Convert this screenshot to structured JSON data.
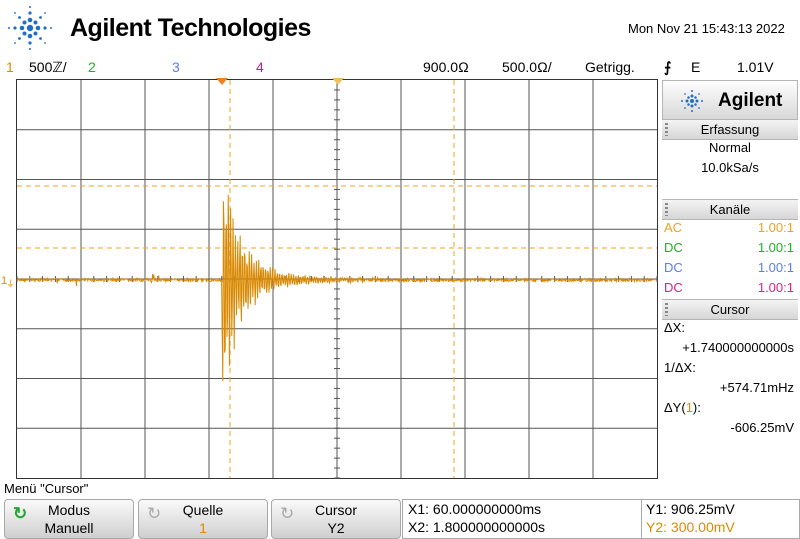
{
  "header": {
    "brand": "Agilent Technologies",
    "datetime": "Mon Nov 21 15:43:13 2022"
  },
  "status_bar": {
    "ch1_num": "1",
    "ch1_scale": "500ℤ/",
    "ch2_num": "2",
    "ch3_num": "3",
    "ch4_num": "4",
    "time_pos": "900.0Ω",
    "time_scale": "500.0Ω/",
    "acq_state": "Getrigg.",
    "trigger_slope": "⨍",
    "trigger_mode": "E",
    "trigger_level": "1.01V"
  },
  "scope": {
    "ch1_marker": "1",
    "ground_marker": "⏚"
  },
  "panel": {
    "brand": "Agilent",
    "acquisition": {
      "title": "Erfassung",
      "mode": "Normal",
      "rate": "10.0kSa/s"
    },
    "channels": {
      "title": "Kanäle",
      "rows": [
        {
          "coupling": "AC",
          "probe": "1.00:1",
          "color": "#f0a020"
        },
        {
          "coupling": "DC",
          "probe": "1.00:1",
          "color": "#22b022"
        },
        {
          "coupling": "DC",
          "probe": "1.00:1",
          "color": "#5b7fe6"
        },
        {
          "coupling": "DC",
          "probe": "1.00:1",
          "color": "#e0208c"
        }
      ]
    },
    "cursor": {
      "title": "Cursor",
      "dx_label": "ΔX:",
      "dx_value": "+1.740000000000s",
      "inv_dx_label": "1/ΔX:",
      "inv_dx_value": "+574.71mHz",
      "dy_label_prefix": "ΔY(",
      "dy_label_ch": "1",
      "dy_label_suffix": "):",
      "dy_value": "-606.25mV"
    }
  },
  "menu": {
    "title": "Menü \"Cursor\"",
    "softkeys": [
      {
        "title": "Modus",
        "value": "Manuell"
      },
      {
        "title": "Quelle",
        "value": "1"
      },
      {
        "title": "Cursor",
        "value": "Y2"
      }
    ],
    "readout": {
      "x1": "X1: 60.000000000ms",
      "x2": "X2: 1.800000000000s",
      "y1": "Y1: 906.25mV",
      "y2": "Y2: 300.00mV"
    }
  },
  "colors": {
    "ch1": "#e08a00",
    "ch2": "#22b022",
    "ch3": "#5b7fe6",
    "ch4": "#b0208c",
    "grid": "#555555",
    "cursor": "#f0a020"
  },
  "cursor_positions": {
    "x1_s": 0.06,
    "x2_s": 1.8,
    "y1_mV": 906.25,
    "y2_mV": 300.0
  }
}
